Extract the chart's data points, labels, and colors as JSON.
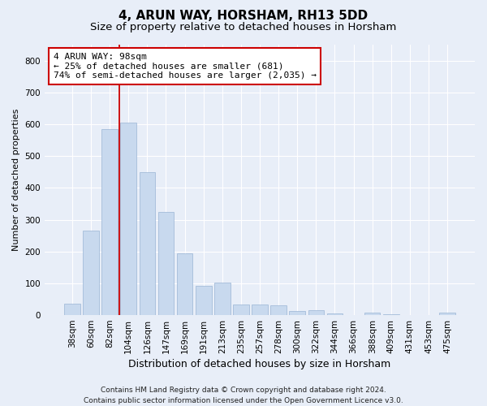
{
  "title": "4, ARUN WAY, HORSHAM, RH13 5DD",
  "subtitle": "Size of property relative to detached houses in Horsham",
  "xlabel": "Distribution of detached houses by size in Horsham",
  "ylabel": "Number of detached properties",
  "categories": [
    "38sqm",
    "60sqm",
    "82sqm",
    "104sqm",
    "126sqm",
    "147sqm",
    "169sqm",
    "191sqm",
    "213sqm",
    "235sqm",
    "257sqm",
    "278sqm",
    "300sqm",
    "322sqm",
    "344sqm",
    "366sqm",
    "388sqm",
    "409sqm",
    "431sqm",
    "453sqm",
    "475sqm"
  ],
  "values": [
    35,
    265,
    585,
    605,
    450,
    325,
    195,
    93,
    102,
    33,
    33,
    30,
    12,
    15,
    5,
    0,
    8,
    3,
    0,
    0,
    8
  ],
  "bar_color": "#c8d9ee",
  "bar_edge_color": "#9ab5d5",
  "vline_color": "#cc0000",
  "annotation_text": "4 ARUN WAY: 98sqm\n← 25% of detached houses are smaller (681)\n74% of semi-detached houses are larger (2,035) →",
  "annotation_box_color": "#ffffff",
  "annotation_box_edge": "#cc0000",
  "ylim": [
    0,
    850
  ],
  "yticks": [
    0,
    100,
    200,
    300,
    400,
    500,
    600,
    700,
    800
  ],
  "bg_color": "#e8eef8",
  "plot_bg_color": "#e8eef8",
  "footer": "Contains HM Land Registry data © Crown copyright and database right 2024.\nContains public sector information licensed under the Open Government Licence v3.0.",
  "title_fontsize": 11,
  "subtitle_fontsize": 9.5,
  "xlabel_fontsize": 9,
  "ylabel_fontsize": 8,
  "tick_fontsize": 7.5,
  "annotation_fontsize": 8,
  "footer_fontsize": 6.5
}
